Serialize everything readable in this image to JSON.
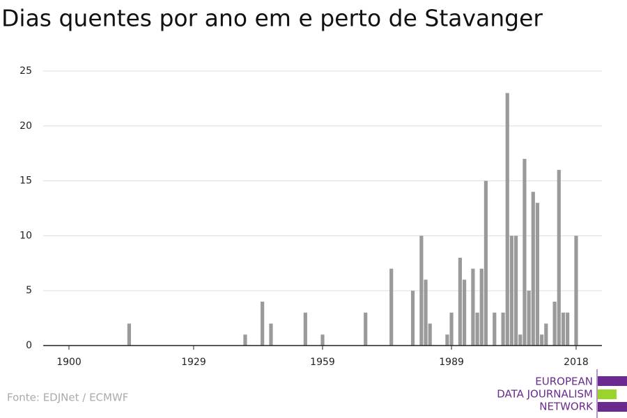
{
  "chart_data": {
    "type": "bar",
    "title": "Dias quentes por ano em e perto de Stavanger",
    "x": [
      1914,
      1941,
      1945,
      1947,
      1955,
      1959,
      1969,
      1975,
      1980,
      1982,
      1983,
      1984,
      1988,
      1989,
      1991,
      1992,
      1994,
      1995,
      1996,
      1997,
      1999,
      2001,
      2002,
      2003,
      2004,
      2005,
      2006,
      2007,
      2008,
      2009,
      2010,
      2011,
      2013,
      2014,
      2015,
      2016,
      2018
    ],
    "values": [
      2,
      1,
      4,
      2,
      3,
      1,
      3,
      7,
      5,
      10,
      6,
      2,
      1,
      3,
      8,
      6,
      7,
      3,
      7,
      15,
      3,
      3,
      23,
      10,
      10,
      1,
      17,
      5,
      14,
      13,
      1,
      2,
      4,
      16,
      3,
      3,
      10
    ],
    "color": "#9a9a9a",
    "xlim": [
      1894,
      2024
    ],
    "xticks": [
      1900,
      1929,
      1959,
      1989,
      2018
    ],
    "ylim": [
      0,
      25
    ],
    "yticks": [
      0,
      5,
      10,
      15,
      20,
      25
    ],
    "grid": true,
    "source": "Fonte: EDJNet / ECMWF",
    "logo": [
      "EUROPEAN",
      "DATA JOURNALISM",
      "NETWORK"
    ]
  }
}
